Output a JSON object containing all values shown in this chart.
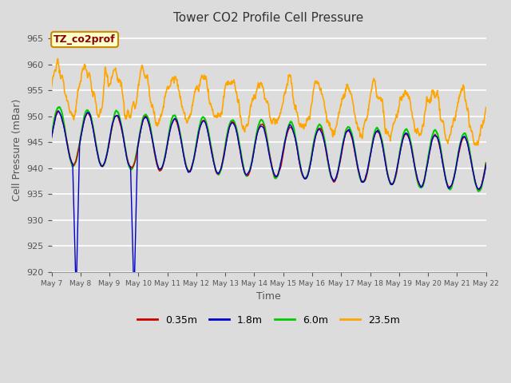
{
  "title": "Tower CO2 Profile Cell Pressure",
  "xlabel": "Time",
  "ylabel": "Cell Pressure (mBar)",
  "ylim": [
    920,
    967
  ],
  "yticks": [
    920,
    925,
    930,
    935,
    940,
    945,
    950,
    955,
    960,
    965
  ],
  "annotation_text": "TZ_co2prof",
  "annotation_color": "#8B0000",
  "annotation_bg": "#FFFFCC",
  "annotation_border": "#CC8800",
  "series_colors": {
    "0.35m": "#CC0000",
    "1.8m": "#0000CC",
    "6.0m": "#00CC00",
    "23.5m": "#FFA500"
  },
  "series_linewidths": {
    "0.35m": 1.0,
    "1.8m": 1.0,
    "6.0m": 1.5,
    "23.5m": 1.2
  },
  "background_color": "#DCDCDC",
  "plot_bg_color": "#DCDCDC",
  "grid_color": "#FFFFFF",
  "legend_colors": [
    "#CC0000",
    "#0000CC",
    "#00CC00",
    "#FFA500"
  ],
  "legend_labels": [
    "0.35m",
    "1.8m",
    "6.0m",
    "23.5m"
  ],
  "n_points": 1440
}
